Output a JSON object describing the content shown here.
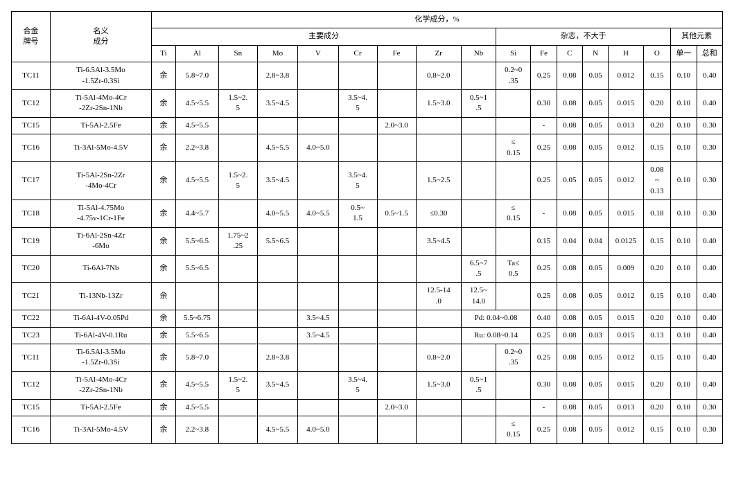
{
  "headers": {
    "grade": "合金\n牌号",
    "nominal": "名义\n成分",
    "chem": "化学成分，%",
    "main": "主要成分",
    "impurity": "杂志，不大于",
    "other": "其他元素",
    "main_cols": [
      "Ti",
      "Al",
      "Sn",
      "Mo",
      "V",
      "Cr",
      "Fe",
      "Zr",
      "Nb"
    ],
    "imp_cols": [
      "Si",
      "Fe",
      "C",
      "N",
      "H",
      "O"
    ],
    "other_cols": [
      "单一",
      "总和"
    ]
  },
  "rows": [
    {
      "grade": "TC11",
      "nom": "Ti-6.5Al-3.5Mo\n-1.5Zr-0.3Si",
      "ti": "余",
      "al": "5.8~7.0",
      "sn": "",
      "mo": "2.8~3.8",
      "v": "",
      "cr": "",
      "fe": "",
      "zr": "0.8~2.0",
      "nb": "",
      "si": "0.2~0\n.35",
      "fe2": "0.25",
      "c": "0.08",
      "n": "0.05",
      "h": "0.012",
      "o": "0.15",
      "one": "0.10",
      "sum": "0.40"
    },
    {
      "grade": "TC12",
      "nom": "Ti-5Al-4Mo-4Cr\n-2Zr-2Sn-1Nb",
      "ti": "余",
      "al": "4.5~5.5",
      "sn": "1.5~2.\n5",
      "mo": "3.5~4.5",
      "v": "",
      "cr": "3.5~4.\n5",
      "fe": "",
      "zr": "1.5~3.0",
      "nb": "0.5~1\n.5",
      "si": "",
      "fe2": "0.30",
      "c": "0.08",
      "n": "0.05",
      "h": "0.015",
      "o": "0.20",
      "one": "0.10",
      "sum": "0.40"
    },
    {
      "grade": "TC15",
      "nom": "Ti-5Al-2.5Fe",
      "ti": "余",
      "al": "4.5~5.5",
      "sn": "",
      "mo": "",
      "v": "",
      "cr": "",
      "fe": "2.0~3.0",
      "zr": "",
      "nb": "",
      "si": "",
      "fe2": "-",
      "c": "0.08",
      "n": "0.05",
      "h": "0.013",
      "o": "0.20",
      "one": "0.10",
      "sum": "0.30"
    },
    {
      "grade": "TC16",
      "nom": "Ti-3Al-5Mo-4.5V",
      "ti": "余",
      "al": "2.2~3.8",
      "sn": "",
      "mo": "4.5~5.5",
      "v": "4.0~5.0",
      "cr": "",
      "fe": "",
      "zr": "",
      "nb": "",
      "si": "≤\n0.15",
      "fe2": "0.25",
      "c": "0.08",
      "n": "0.05",
      "h": "0.012",
      "o": "0.15",
      "one": "0.10",
      "sum": "0.30"
    },
    {
      "grade": "TC17",
      "nom": "Ti-5Al-2Sn-2Zr\n-4Mo-4Cr",
      "ti": "余",
      "al": "4.5~5.5",
      "sn": "1.5~2.\n5",
      "mo": "3.5~4.5",
      "v": "",
      "cr": "3.5~4.\n5",
      "fe": "",
      "zr": "1.5~2.5",
      "nb": "",
      "si": "",
      "fe2": "0.25",
      "c": "0.05",
      "n": "0.05",
      "h": "0.012",
      "o": "0.08\n~\n0.13",
      "one": "0.10",
      "sum": "0.30"
    },
    {
      "grade": "TC18",
      "nom": "Ti-5Al-4.75Mo\n-4.75v-1Cr-1Fe",
      "ti": "余",
      "al": "4.4~5.7",
      "sn": "",
      "mo": "4.0~5.5",
      "v": "4.0~5.5",
      "cr": "0.5~\n1.5",
      "fe": "0.5~1.5",
      "zr": "≤0.30",
      "nb": "",
      "si": "≤\n0.15",
      "fe2": "-",
      "c": "0.08",
      "n": "0.05",
      "h": "0.015",
      "o": "0.18",
      "one": "0.10",
      "sum": "0.30"
    },
    {
      "grade": "TC19",
      "nom": "Ti-6Al-2Sn-4Zr\n-6Mo",
      "ti": "余",
      "al": "5.5~6.5",
      "sn": "1.75~2\n.25",
      "mo": "5.5~6.5",
      "v": "",
      "cr": "",
      "fe": "",
      "zr": "3.5~4.5",
      "nb": "",
      "si": "",
      "fe2": "0.15",
      "c": "0.04",
      "n": "0.04",
      "h": "0.0125",
      "o": "0.15",
      "one": "0.10",
      "sum": "0.40"
    },
    {
      "grade": "TC20",
      "nom": "Ti-6Al-7Nb",
      "ti": "余",
      "al": "5.5~6.5",
      "sn": "",
      "mo": "",
      "v": "",
      "cr": "",
      "fe": "",
      "zr": "",
      "nb": "6.5~7\n.5",
      "si": "Ta≤\n0.5",
      "fe2": "0.25",
      "c": "0.08",
      "n": "0.05",
      "h": "0.009",
      "o": "0.20",
      "one": "0.10",
      "sum": "0.40"
    },
    {
      "grade": "TC21",
      "nom": "Ti-13Nb-13Zr",
      "ti": "余",
      "al": "",
      "sn": "",
      "mo": "",
      "v": "",
      "cr": "",
      "fe": "",
      "zr": "12.5-14\n.0",
      "nb": "12.5~\n14.0",
      "si": "",
      "fe2": "0.25",
      "c": "0.08",
      "n": "0.05",
      "h": "0.012",
      "o": "0.15",
      "one": "0.10",
      "sum": "0.40"
    },
    {
      "grade": "TC22",
      "nom": "Ti-6Al-4V-0.05Pd",
      "ti": "余",
      "al": "5.5~6.75",
      "sn": "",
      "mo": "",
      "v": "3.5~4.5",
      "cr": "",
      "fe": "",
      "zr": "",
      "nb": "",
      "merge": "Pd: 0.04~0.08",
      "fe2": "0.40",
      "c": "0.08",
      "n": "0.05",
      "h": "0.015",
      "o": "0.20",
      "one": "0.10",
      "sum": "0.40"
    },
    {
      "grade": "TC23",
      "nom": "Ti-6Al-4V-0.1Ru",
      "ti": "余",
      "al": "5.5~6.5",
      "sn": "",
      "mo": "",
      "v": "3.5~4.5",
      "cr": "",
      "fe": "",
      "zr": "",
      "nb": "",
      "merge": "Ru: 0.08~0.14",
      "fe2": "0.25",
      "c": "0.08",
      "n": "0.03",
      "h": "0.015",
      "o": "0.13",
      "one": "0.10",
      "sum": "0.40"
    },
    {
      "grade": "TC11",
      "nom": "Ti-6.5Al-3.5Mo\n-1.5Zr-0.3Si",
      "ti": "余",
      "al": "5.8~7.0",
      "sn": "",
      "mo": "2.8~3.8",
      "v": "",
      "cr": "",
      "fe": "",
      "zr": "0.8~2.0",
      "nb": "",
      "si": "0.2~0\n.35",
      "fe2": "0.25",
      "c": "0.08",
      "n": "0.05",
      "h": "0.012",
      "o": "0.15",
      "one": "0.10",
      "sum": "0.40"
    },
    {
      "grade": "TC12",
      "nom": "Ti-5Al-4Mo-4Cr\n-2Zr-2Sn-1Nb",
      "ti": "余",
      "al": "4.5~5.5",
      "sn": "1.5~2.\n5",
      "mo": "3.5~4.5",
      "v": "",
      "cr": "3.5~4.\n5",
      "fe": "",
      "zr": "1.5~3.0",
      "nb": "0.5~1\n.5",
      "si": "",
      "fe2": "0.30",
      "c": "0.08",
      "n": "0.05",
      "h": "0.015",
      "o": "0.20",
      "one": "0.10",
      "sum": "0.40"
    },
    {
      "grade": "TC15",
      "nom": "Ti-5Al-2.5Fe",
      "ti": "余",
      "al": "4.5~5.5",
      "sn": "",
      "mo": "",
      "v": "",
      "cr": "",
      "fe": "2.0~3.0",
      "zr": "",
      "nb": "",
      "si": "",
      "fe2": "-",
      "c": "0.08",
      "n": "0.05",
      "h": "0.013",
      "o": "0.20",
      "one": "0.10",
      "sum": "0.30"
    },
    {
      "grade": "TC16",
      "nom": "Ti-3Al-5Mo-4.5V",
      "ti": "余",
      "al": "2.2~3.8",
      "sn": "",
      "mo": "4.5~5.5",
      "v": "4.0~5.0",
      "cr": "",
      "fe": "",
      "zr": "",
      "nb": "",
      "si": "≤\n0.15",
      "fe2": "0.25",
      "c": "0.08",
      "n": "0.05",
      "h": "0.012",
      "o": "0.15",
      "one": "0.10",
      "sum": "0.30"
    }
  ]
}
